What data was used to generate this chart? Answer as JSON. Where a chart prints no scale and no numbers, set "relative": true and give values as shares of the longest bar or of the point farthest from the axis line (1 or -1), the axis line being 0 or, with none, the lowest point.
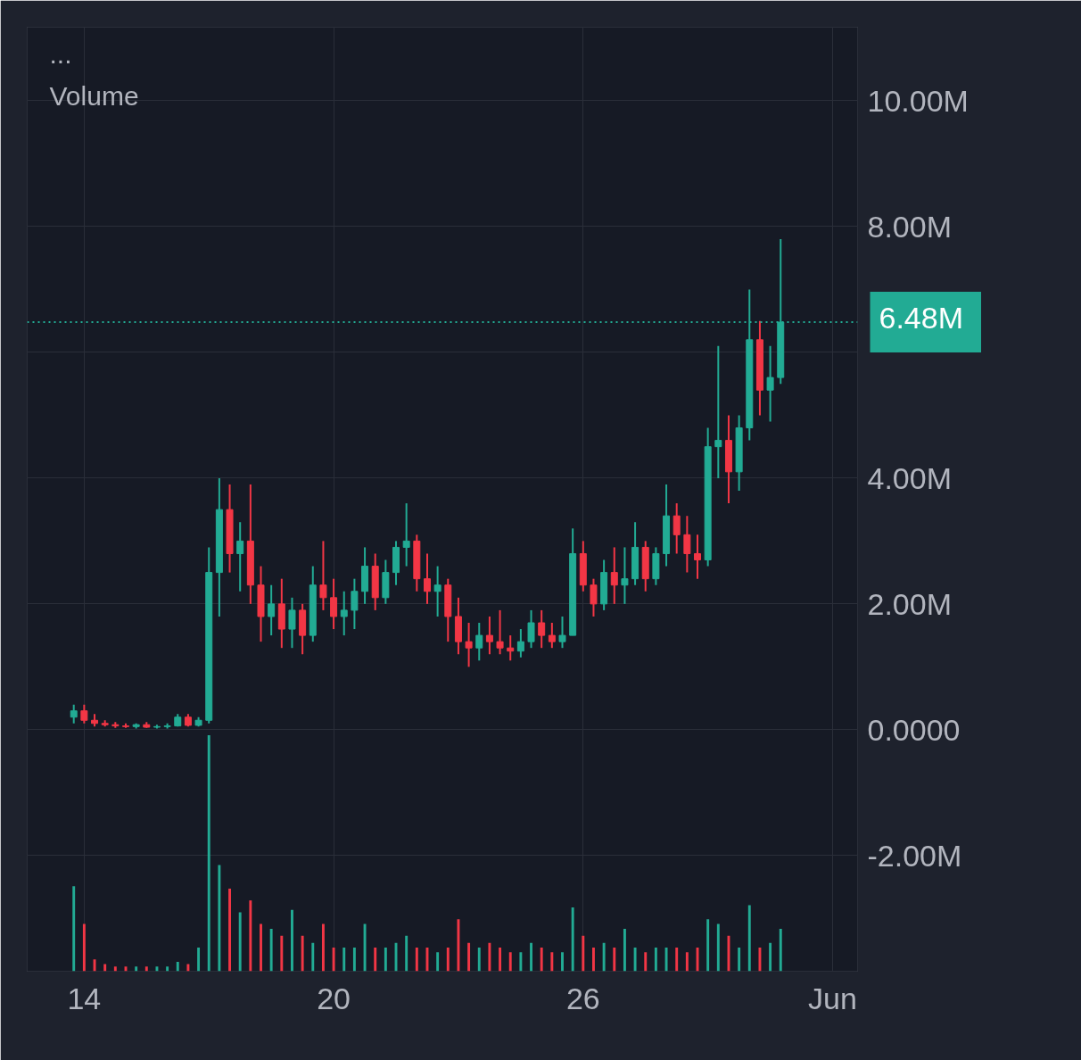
{
  "chart_data": [
    {
      "type": "candlestick",
      "title": "Volume",
      "annotations": [
        "..."
      ],
      "grid": true,
      "x": [
        13.75,
        14,
        14.25,
        14.5,
        14.75,
        15,
        15.25,
        15.5,
        15.75,
        16,
        16.25,
        16.5,
        16.75,
        17,
        17.25,
        17.5,
        17.75,
        18,
        18.25,
        18.5,
        18.75,
        19,
        19.25,
        19.5,
        19.75,
        20,
        20.25,
        20.5,
        20.75,
        21,
        21.25,
        21.5,
        21.75,
        22,
        22.25,
        22.5,
        22.75,
        23,
        23.25,
        23.5,
        23.75,
        24,
        24.25,
        24.5,
        24.75,
        25,
        25.25,
        25.5,
        25.75,
        26,
        26.25,
        26.5,
        26.75,
        27,
        27.25,
        27.5,
        27.75,
        28,
        28.25,
        28.5,
        28.75,
        29,
        29.25,
        29.5,
        29.75,
        30,
        30.25,
        30.5,
        30.75
      ],
      "ohlc": [
        [
          0.2,
          0.4,
          0.1,
          0.3
        ],
        [
          0.3,
          0.4,
          0.1,
          0.15
        ],
        [
          0.15,
          0.25,
          0.05,
          0.1
        ],
        [
          0.1,
          0.15,
          0.05,
          0.08
        ],
        [
          0.08,
          0.12,
          0.03,
          0.06
        ],
        [
          0.06,
          0.1,
          0.03,
          0.05
        ],
        [
          0.05,
          0.1,
          0.02,
          0.08
        ],
        [
          0.08,
          0.12,
          0.03,
          0.04
        ],
        [
          0.04,
          0.08,
          0.02,
          0.05
        ],
        [
          0.05,
          0.1,
          0.02,
          0.06
        ],
        [
          0.06,
          0.25,
          0.05,
          0.2
        ],
        [
          0.2,
          0.25,
          0.05,
          0.07
        ],
        [
          0.07,
          0.2,
          0.05,
          0.15
        ],
        [
          0.15,
          2.9,
          0.1,
          2.5
        ],
        [
          2.5,
          4.0,
          1.8,
          3.5
        ],
        [
          3.5,
          3.9,
          2.5,
          2.8
        ],
        [
          2.8,
          3.3,
          2.2,
          3.0
        ],
        [
          3.0,
          3.9,
          2.0,
          2.3
        ],
        [
          2.3,
          2.6,
          1.4,
          1.8
        ],
        [
          1.8,
          2.3,
          1.5,
          2.0
        ],
        [
          2.0,
          2.4,
          1.3,
          1.6
        ],
        [
          1.6,
          2.1,
          1.3,
          1.9
        ],
        [
          1.9,
          2.0,
          1.2,
          1.5
        ],
        [
          1.5,
          2.6,
          1.4,
          2.3
        ],
        [
          2.3,
          3.0,
          1.9,
          2.1
        ],
        [
          2.1,
          2.4,
          1.6,
          1.8
        ],
        [
          1.8,
          2.2,
          1.5,
          1.9
        ],
        [
          1.9,
          2.4,
          1.6,
          2.2
        ],
        [
          2.2,
          2.9,
          2.0,
          2.6
        ],
        [
          2.6,
          2.8,
          1.9,
          2.1
        ],
        [
          2.1,
          2.7,
          2.0,
          2.5
        ],
        [
          2.5,
          3.0,
          2.3,
          2.9
        ],
        [
          2.9,
          3.6,
          2.6,
          3.0
        ],
        [
          3.0,
          3.1,
          2.2,
          2.4
        ],
        [
          2.4,
          2.8,
          2.0,
          2.2
        ],
        [
          2.2,
          2.6,
          1.8,
          2.3
        ],
        [
          2.3,
          2.4,
          1.4,
          1.8
        ],
        [
          1.8,
          2.1,
          1.2,
          1.4
        ],
        [
          1.4,
          1.7,
          1.0,
          1.3
        ],
        [
          1.3,
          1.7,
          1.1,
          1.5
        ],
        [
          1.5,
          1.8,
          1.2,
          1.4
        ],
        [
          1.4,
          1.9,
          1.2,
          1.3
        ],
        [
          1.3,
          1.5,
          1.1,
          1.25
        ],
        [
          1.25,
          1.6,
          1.15,
          1.4
        ],
        [
          1.4,
          1.9,
          1.3,
          1.7
        ],
        [
          1.7,
          1.9,
          1.3,
          1.5
        ],
        [
          1.5,
          1.7,
          1.3,
          1.4
        ],
        [
          1.4,
          1.8,
          1.3,
          1.5
        ],
        [
          1.5,
          3.2,
          1.5,
          2.8
        ],
        [
          2.8,
          3.0,
          2.2,
          2.3
        ],
        [
          2.3,
          2.4,
          1.8,
          2.0
        ],
        [
          2.0,
          2.7,
          1.9,
          2.5
        ],
        [
          2.5,
          2.9,
          2.0,
          2.3
        ],
        [
          2.3,
          2.9,
          2.0,
          2.4
        ],
        [
          2.4,
          3.3,
          2.3,
          2.9
        ],
        [
          2.9,
          3.0,
          2.2,
          2.4
        ],
        [
          2.4,
          2.9,
          2.3,
          2.8
        ],
        [
          2.8,
          3.9,
          2.6,
          3.4
        ],
        [
          3.4,
          3.6,
          2.8,
          3.1
        ],
        [
          3.1,
          3.4,
          2.5,
          2.8
        ],
        [
          2.8,
          3.1,
          2.4,
          2.7
        ],
        [
          2.7,
          4.8,
          2.6,
          4.5
        ],
        [
          4.5,
          6.1,
          4.0,
          4.6
        ],
        [
          4.6,
          5.0,
          3.6,
          4.1
        ],
        [
          4.1,
          5.0,
          3.8,
          4.8
        ],
        [
          4.8,
          7.0,
          4.6,
          6.2
        ],
        [
          6.2,
          6.5,
          5.0,
          5.4
        ],
        [
          5.4,
          6.1,
          4.9,
          5.6
        ],
        [
          5.6,
          7.8,
          5.5,
          6.48
        ]
      ],
      "colors": [
        "#22ab94",
        "#f23645",
        "#f23645",
        "#f23645",
        "#f23645",
        "#f23645",
        "#22ab94",
        "#f23645",
        "#22ab94",
        "#22ab94",
        "#22ab94",
        "#f23645",
        "#22ab94",
        "#22ab94",
        "#22ab94",
        "#f23645",
        "#22ab94",
        "#f23645",
        "#f23645",
        "#22ab94",
        "#f23645",
        "#22ab94",
        "#f23645",
        "#22ab94",
        "#f23645",
        "#f23645",
        "#22ab94",
        "#22ab94",
        "#22ab94",
        "#f23645",
        "#22ab94",
        "#22ab94",
        "#22ab94",
        "#f23645",
        "#f23645",
        "#22ab94",
        "#f23645",
        "#f23645",
        "#f23645",
        "#22ab94",
        "#f23645",
        "#f23645",
        "#f23645",
        "#22ab94",
        "#22ab94",
        "#f23645",
        "#f23645",
        "#22ab94",
        "#22ab94",
        "#f23645",
        "#f23645",
        "#22ab94",
        "#f23645",
        "#22ab94",
        "#22ab94",
        "#f23645",
        "#22ab94",
        "#22ab94",
        "#f23645",
        "#f23645",
        "#f23645",
        "#22ab94",
        "#22ab94",
        "#f23645",
        "#22ab94",
        "#22ab94",
        "#f23645",
        "#22ab94",
        "#22ab94"
      ],
      "xlim": [
        12.63,
        32.6
      ],
      "xticks": [
        14,
        20,
        26,
        {
          "value": 32,
          "label": "Jun"
        }
      ],
      "ylim": [
        -3.84,
        11.17
      ],
      "yticks": [
        {
          "value": -2,
          "label": "-2.00M"
        },
        {
          "value": 0,
          "label": "0.0000"
        },
        {
          "value": 2,
          "label": "2.00M"
        },
        {
          "value": 4,
          "label": "4.00M"
        },
        {
          "value": 6,
          "label": null
        },
        {
          "value": 8,
          "label": "8.00M"
        },
        {
          "value": 10,
          "label": "10.00M"
        }
      ],
      "ref_lines": [
        {
          "axis": "y",
          "value": 6.48,
          "label": "6.48M",
          "color": "#22ab94",
          "line_style": "dotted"
        }
      ]
    },
    {
      "type": "bar",
      "relative": true,
      "categories": [
        null,
        null,
        null,
        null,
        null,
        null,
        null,
        null,
        null,
        null,
        null,
        null,
        null,
        null,
        null,
        null,
        null,
        null,
        null,
        null,
        null,
        null,
        null,
        null,
        null,
        null,
        null,
        null,
        null,
        null,
        null,
        null,
        null,
        null,
        null,
        null,
        null,
        null,
        null,
        null,
        null,
        null,
        null,
        null,
        null,
        null,
        null,
        null,
        null,
        null,
        null,
        null,
        null,
        null,
        null,
        null,
        null,
        null,
        null,
        null,
        null,
        null,
        null,
        null,
        null,
        null,
        null,
        null,
        null
      ],
      "values": [
        0.36,
        0.2,
        0.05,
        0.03,
        0.02,
        0.02,
        0.02,
        0.02,
        0.02,
        0.02,
        0.04,
        0.03,
        0.1,
        1.0,
        0.45,
        0.35,
        0.25,
        0.3,
        0.2,
        0.18,
        0.15,
        0.26,
        0.15,
        0.12,
        0.2,
        0.1,
        0.1,
        0.1,
        0.2,
        0.1,
        0.1,
        0.12,
        0.15,
        0.1,
        0.1,
        0.08,
        0.1,
        0.22,
        0.12,
        0.1,
        0.12,
        0.1,
        0.08,
        0.08,
        0.12,
        0.1,
        0.08,
        0.08,
        0.27,
        0.15,
        0.1,
        0.12,
        0.1,
        0.18,
        0.1,
        0.08,
        0.1,
        0.1,
        0.1,
        0.08,
        0.1,
        0.22,
        0.2,
        0.15,
        0.1,
        0.28,
        0.1,
        0.12,
        0.18
      ],
      "colors": [
        "#22ab94",
        "#f23645",
        "#f23645",
        "#f23645",
        "#f23645",
        "#f23645",
        "#22ab94",
        "#f23645",
        "#22ab94",
        "#22ab94",
        "#22ab94",
        "#f23645",
        "#22ab94",
        "#22ab94",
        "#22ab94",
        "#f23645",
        "#22ab94",
        "#f23645",
        "#f23645",
        "#22ab94",
        "#f23645",
        "#22ab94",
        "#f23645",
        "#22ab94",
        "#f23645",
        "#f23645",
        "#22ab94",
        "#22ab94",
        "#22ab94",
        "#f23645",
        "#22ab94",
        "#22ab94",
        "#22ab94",
        "#f23645",
        "#f23645",
        "#22ab94",
        "#f23645",
        "#f23645",
        "#f23645",
        "#22ab94",
        "#f23645",
        "#f23645",
        "#f23645",
        "#22ab94",
        "#22ab94",
        "#f23645",
        "#f23645",
        "#22ab94",
        "#22ab94",
        "#f23645",
        "#f23645",
        "#22ab94",
        "#f23645",
        "#22ab94",
        "#22ab94",
        "#f23645",
        "#22ab94",
        "#22ab94",
        "#f23645",
        "#f23645",
        "#f23645",
        "#22ab94",
        "#22ab94",
        "#f23645",
        "#22ab94",
        "#22ab94",
        "#f23645",
        "#22ab94",
        "#22ab94"
      ]
    }
  ]
}
